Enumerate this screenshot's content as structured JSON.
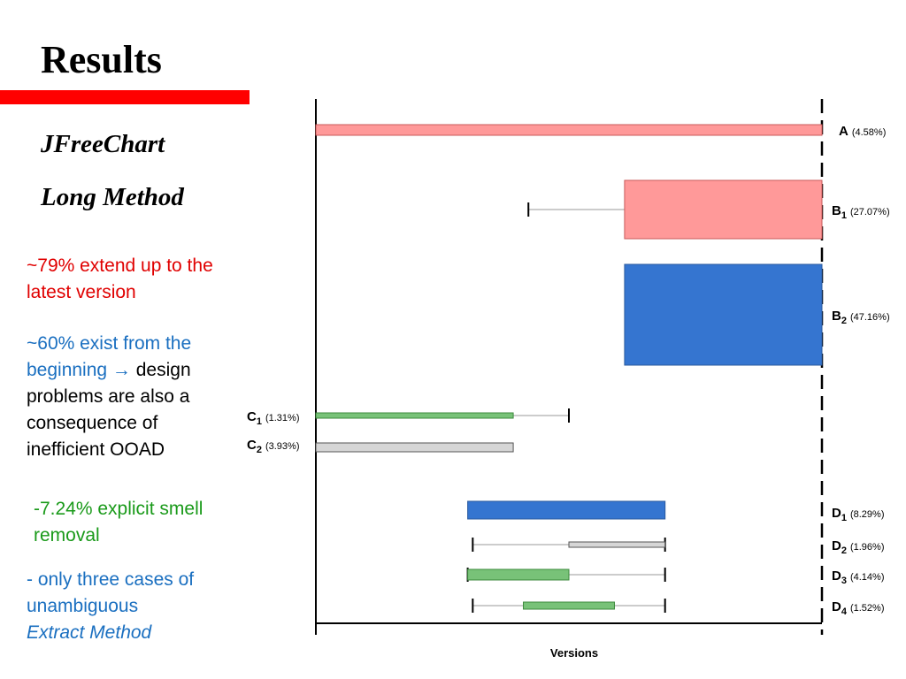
{
  "title": "Results",
  "subtitle_1": "JFreeChart",
  "subtitle_2": "Long Method",
  "notes": {
    "n1": "~79% extend up to the latest version",
    "n2_blue": "~60% exist from the beginning →",
    "n2_black": " design problems are also a consequence of inefficient OOAD",
    "n3": "-7.24% explicit smell removal",
    "n4_text": "- only three cases of unambiguous",
    "n4_italic": "Extract Method"
  },
  "colors": {
    "red": "#ff9999",
    "blue": "#3575d0",
    "green": "#78c278",
    "gray": "#d6d6d6",
    "accent_red": "#ff0000"
  },
  "chart_data": {
    "type": "gantt",
    "xlabel": "Versions",
    "x_range": [
      0,
      100
    ],
    "rows": [
      {
        "letter": "A",
        "sub": "",
        "pct": "(4.58%)",
        "bar": [
          0,
          100
        ],
        "whisker": null,
        "color": "red"
      },
      {
        "letter": "B",
        "sub": "1",
        "pct": "(27.07%)",
        "bar": [
          61,
          100
        ],
        "whisker": [
          42,
          100
        ],
        "color": "red"
      },
      {
        "letter": "B",
        "sub": "2",
        "pct": "(47.16%)",
        "bar": [
          61,
          100
        ],
        "whisker": null,
        "color": "blue"
      },
      {
        "letter": "C",
        "sub": "1",
        "pct": "(1.31%)",
        "bar": [
          0,
          39
        ],
        "whisker": [
          0,
          50
        ],
        "color": "green"
      },
      {
        "letter": "C",
        "sub": "2",
        "pct": "(3.93%)",
        "bar": [
          0,
          39
        ],
        "whisker": null,
        "color": "gray"
      },
      {
        "letter": "D",
        "sub": "1",
        "pct": "(8.29%)",
        "bar": [
          30,
          69
        ],
        "whisker": null,
        "color": "blue"
      },
      {
        "letter": "D",
        "sub": "2",
        "pct": "(1.96%)",
        "bar": [
          50,
          69
        ],
        "whisker": [
          31,
          69
        ],
        "color": "gray"
      },
      {
        "letter": "D",
        "sub": "3",
        "pct": "(4.14%)",
        "bar": [
          30,
          50
        ],
        "whisker": [
          30,
          69
        ],
        "color": "green"
      },
      {
        "letter": "D",
        "sub": "4",
        "pct": "(1.52%)",
        "bar": [
          41,
          59
        ],
        "whisker": [
          31,
          69
        ],
        "color": "green"
      }
    ]
  }
}
